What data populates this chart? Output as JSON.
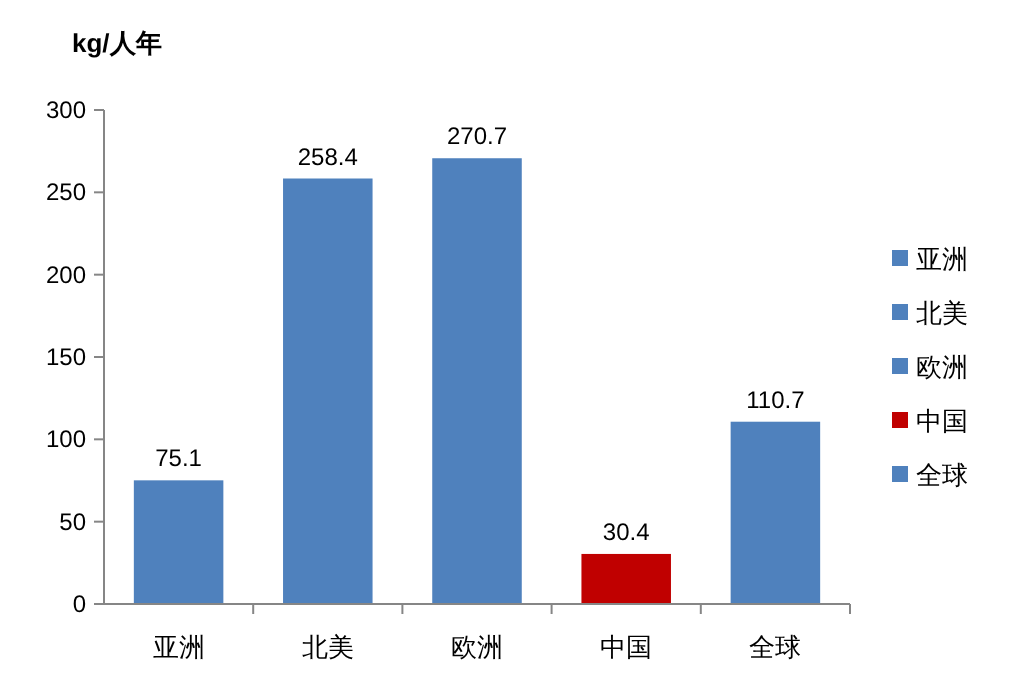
{
  "chart_data": {
    "type": "bar",
    "ylabel": "kg/人年",
    "categories": [
      "亚洲",
      "北美",
      "欧洲",
      "中国",
      "全球"
    ],
    "series": [
      {
        "name": "亚洲",
        "color": "#4f81bd",
        "values": [
          75.1,
          null,
          null,
          null,
          null
        ]
      },
      {
        "name": "北美",
        "color": "#4f81bd",
        "values": [
          null,
          258.4,
          null,
          null,
          null
        ]
      },
      {
        "name": "欧洲",
        "color": "#4f81bd",
        "values": [
          null,
          null,
          270.7,
          null,
          null
        ]
      },
      {
        "name": "中国",
        "color": "#c00000",
        "values": [
          null,
          null,
          null,
          30.4,
          null
        ]
      },
      {
        "name": "全球",
        "color": "#4f81bd",
        "values": [
          null,
          null,
          null,
          null,
          110.7
        ]
      }
    ],
    "ylim": [
      0,
      300
    ],
    "yticks": [
      0,
      50,
      100,
      150,
      200,
      250,
      300
    ],
    "data_labels": true,
    "legend": "right"
  }
}
